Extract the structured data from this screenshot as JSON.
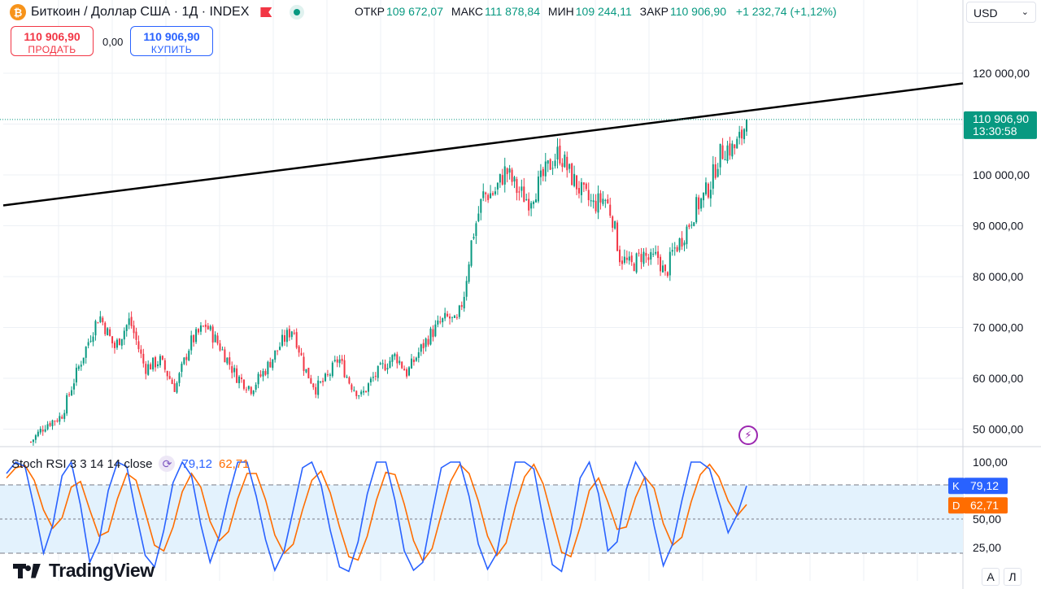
{
  "header": {
    "symbol_title": "Биткоин / Доллар США · 1Д · INDEX",
    "open_label": "ОТКР",
    "open": "109 672,07",
    "high_label": "МАКС",
    "high": "111 878,84",
    "low_label": "МИН",
    "low": "109 244,11",
    "close_label": "ЗАКР",
    "close": "110 906,90",
    "change": "+1 232,74 (+1,12%)"
  },
  "trade": {
    "sell_price": "110 906,90",
    "sell_label": "ПРОДАТЬ",
    "spread": "0,00",
    "buy_price": "110 906,90",
    "buy_label": "КУПИТЬ"
  },
  "currency_select": {
    "value": "USD"
  },
  "price_tag": {
    "price": "110 906,90",
    "countdown": "13:30:58"
  },
  "oscillator": {
    "name": "Stoch RSI 3 3 14 14 close",
    "k_value": "79,12",
    "d_value": "62,71",
    "k_tag_label": "K",
    "d_tag_label": "D"
  },
  "watermark": {
    "text": "TradingView"
  },
  "bottom_buttons": {
    "auto": "A",
    "log": "Л"
  },
  "colors": {
    "up": "#089981",
    "down": "#f23645",
    "k_line": "#2962ff",
    "d_line": "#ff6d00",
    "band_fill": "#e3f2fd",
    "trendline": "#000000",
    "grid": "#edf0f5"
  },
  "chart_data": [
    {
      "type": "candlestick",
      "ylim": [
        47000,
        130000
      ],
      "y_ticks": [
        50000,
        60000,
        70000,
        80000,
        90000,
        100000,
        110000,
        120000
      ],
      "y_tick_labels": [
        "50 000,00",
        "60 000,00",
        "70 000,00",
        "80 000,00",
        "90 000,00",
        "100 000,00",
        "110 000,00",
        "120 000,00"
      ],
      "grid": true,
      "last_price": 110906.9,
      "trendline": {
        "from": [
          0,
          94000
        ],
        "to": [
          1,
          118000
        ]
      },
      "price_path": [
        [
          0,
          47500
        ],
        [
          0.02,
          51000
        ],
        [
          0.04,
          52500
        ],
        [
          0.06,
          61000
        ],
        [
          0.08,
          69000
        ],
        [
          0.09,
          72500
        ],
        [
          0.11,
          66000
        ],
        [
          0.13,
          71500
        ],
        [
          0.15,
          62000
        ],
        [
          0.17,
          63500
        ],
        [
          0.19,
          58000
        ],
        [
          0.21,
          67000
        ],
        [
          0.23,
          70500
        ],
        [
          0.25,
          66000
        ],
        [
          0.27,
          60500
        ],
        [
          0.29,
          58000
        ],
        [
          0.31,
          62000
        ],
        [
          0.33,
          67000
        ],
        [
          0.345,
          70000
        ],
        [
          0.36,
          62000
        ],
        [
          0.375,
          58000
        ],
        [
          0.39,
          60000
        ],
        [
          0.405,
          64000
        ],
        [
          0.42,
          59000
        ],
        [
          0.435,
          56500
        ],
        [
          0.45,
          60000
        ],
        [
          0.465,
          62500
        ],
        [
          0.48,
          64500
        ],
        [
          0.495,
          61000
        ],
        [
          0.51,
          65000
        ],
        [
          0.525,
          68500
        ],
        [
          0.54,
          71000
        ],
        [
          0.55,
          72000
        ],
        [
          0.56,
          70500
        ],
        [
          0.57,
          76500
        ],
        [
          0.58,
          87000
        ],
        [
          0.595,
          96000
        ],
        [
          0.61,
          96500
        ],
        [
          0.625,
          101000
        ],
        [
          0.64,
          97000
        ],
        [
          0.655,
          95000
        ],
        [
          0.67,
          98500
        ],
        [
          0.685,
          102500
        ],
        [
          0.695,
          104500
        ],
        [
          0.71,
          100000
        ],
        [
          0.725,
          96500
        ],
        [
          0.74,
          94000
        ],
        [
          0.755,
          95500
        ],
        [
          0.765,
          92000
        ],
        [
          0.775,
          84000
        ],
        [
          0.79,
          82000
        ],
        [
          0.805,
          84500
        ],
        [
          0.815,
          83000
        ],
        [
          0.825,
          84000
        ],
        [
          0.835,
          80000
        ],
        [
          0.845,
          85000
        ],
        [
          0.855,
          87000
        ],
        [
          0.865,
          90000
        ],
        [
          0.875,
          93500
        ],
        [
          0.885,
          95500
        ],
        [
          0.895,
          98500
        ],
        [
          0.905,
          103500
        ],
        [
          0.915,
          105500
        ],
        [
          0.925,
          105000
        ],
        [
          0.935,
          107500
        ],
        [
          0.942,
          110906.9
        ]
      ]
    },
    {
      "type": "line",
      "title": "Stoch RSI 3 3 14 14 close",
      "ylim": [
        0,
        100
      ],
      "y_ticks": [
        100,
        50,
        25
      ],
      "y_tick_labels": [
        "100,00",
        "50,00",
        "25,00"
      ],
      "bands": {
        "upper": 80,
        "middle": 50,
        "lower": 20
      },
      "series": [
        {
          "name": "K",
          "last": 79.12,
          "values": [
            90,
            100,
            96,
            60,
            20,
            45,
            88,
            100,
            62,
            12,
            30,
            75,
            100,
            96,
            55,
            18,
            8,
            40,
            82,
            100,
            88,
            45,
            12,
            35,
            70,
            100,
            100,
            70,
            32,
            5,
            22,
            58,
            95,
            100,
            80,
            40,
            8,
            4,
            30,
            72,
            100,
            100,
            66,
            22,
            5,
            12,
            55,
            95,
            100,
            100,
            70,
            28,
            6,
            20,
            62,
            100,
            100,
            94,
            50,
            10,
            4,
            38,
            86,
            100,
            72,
            22,
            30,
            76,
            100,
            86,
            44,
            9,
            28,
            66,
            100,
            100,
            94,
            66,
            38,
            54,
            79.12
          ]
        },
        {
          "name": "D",
          "last": 62.71,
          "values": [
            86,
            95,
            97,
            84,
            58,
            42,
            51,
            78,
            83,
            58,
            35,
            39,
            68,
            90,
            84,
            56,
            27,
            22,
            43,
            74,
            90,
            78,
            48,
            31,
            39,
            68,
            90,
            90,
            67,
            36,
            20,
            28,
            58,
            84,
            92,
            73,
            43,
            17,
            14,
            35,
            67,
            91,
            89,
            63,
            31,
            13,
            24,
            54,
            83,
            98,
            90,
            66,
            35,
            18,
            29,
            61,
            87,
            98,
            81,
            51,
            21,
            17,
            43,
            75,
            86,
            65,
            41,
            43,
            69,
            87,
            77,
            46,
            27,
            34,
            65,
            89,
            98,
            87,
            66,
            53,
            62.71
          ]
        }
      ]
    }
  ]
}
